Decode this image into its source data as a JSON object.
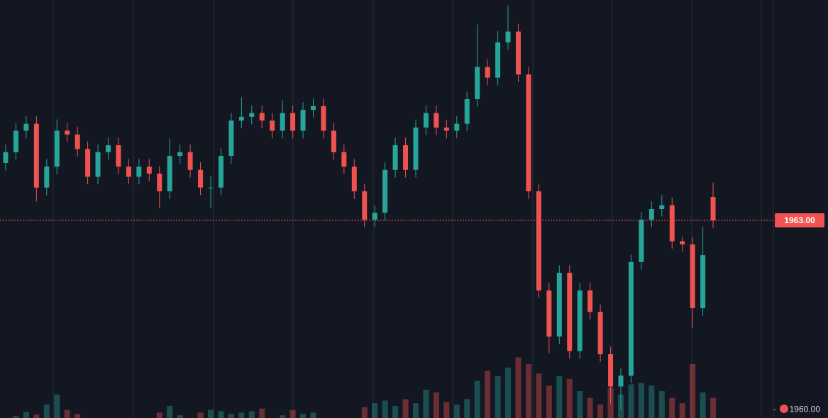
{
  "chart_data": {
    "type": "candlestick",
    "open": [
      1963.91,
      1964.08,
      1964.42,
      1964.53,
      1963.52,
      1963.85,
      1964.42,
      1964.36,
      1964.13,
      1963.69,
      1964.08,
      1964.19,
      1963.85,
      1963.69,
      1963.85,
      1963.74,
      1963.46,
      1964.02,
      1964.08,
      1963.8,
      1963.52,
      1963.52,
      1964.02,
      1964.58,
      1964.64,
      1964.7,
      1964.58,
      1964.42,
      1964.7,
      1964.42,
      1964.75,
      1964.81,
      1964.42,
      1964.08,
      1963.85,
      1963.46,
      1963.01,
      1963.12,
      1963.8,
      1964.19,
      1963.8,
      1964.47,
      1964.7,
      1964.47,
      1964.42,
      1964.53,
      1964.92,
      1965.43,
      1965.26,
      1965.82,
      1965.99,
      1965.31,
      1963.46,
      1961.89,
      1961.16,
      1962.17,
      1960.93,
      1961.89,
      1961.55,
      1960.88,
      1960.37,
      1960.54,
      1962.34,
      1963.01,
      1963.18,
      1963.24,
      1962.67,
      1962.62,
      1961.61,
      1963.37
    ],
    "high": [
      1964.2,
      1964.54,
      1964.65,
      1964.65,
      1963.97,
      1964.6,
      1964.54,
      1964.48,
      1964.25,
      1964.2,
      1964.31,
      1964.31,
      1963.97,
      1963.97,
      1963.97,
      1963.86,
      1964.3,
      1964.2,
      1964.2,
      1963.92,
      1963.7,
      1964.14,
      1964.7,
      1964.95,
      1964.82,
      1964.82,
      1964.7,
      1964.9,
      1964.82,
      1964.87,
      1964.93,
      1964.93,
      1964.54,
      1964.2,
      1963.97,
      1963.58,
      1963.24,
      1963.92,
      1964.31,
      1964.31,
      1964.59,
      1964.82,
      1964.82,
      1964.59,
      1964.65,
      1965.04,
      1966.1,
      1965.55,
      1966.0,
      1966.4,
      1966.11,
      1965.43,
      1963.58,
      1962.01,
      1962.29,
      1962.29,
      1962.01,
      1962.01,
      1961.67,
      1961.0,
      1960.66,
      1962.46,
      1963.13,
      1963.3,
      1963.4,
      1963.36,
      1962.74,
      1962.74,
      1962.9,
      1963.6
    ],
    "low": [
      1963.79,
      1963.96,
      1964.3,
      1963.3,
      1963.4,
      1963.73,
      1964.24,
      1964.01,
      1963.57,
      1963.57,
      1963.96,
      1963.73,
      1963.57,
      1963.57,
      1963.62,
      1963.2,
      1963.34,
      1963.9,
      1963.68,
      1963.4,
      1963.2,
      1963.4,
      1963.9,
      1964.46,
      1964.52,
      1964.46,
      1964.3,
      1964.3,
      1964.3,
      1964.3,
      1964.63,
      1964.3,
      1963.96,
      1963.73,
      1963.34,
      1962.89,
      1962.89,
      1963.0,
      1963.68,
      1963.68,
      1963.68,
      1964.35,
      1964.35,
      1964.3,
      1964.3,
      1964.41,
      1964.8,
      1965.14,
      1965.14,
      1965.7,
      1965.19,
      1963.34,
      1961.77,
      1960.9,
      1961.04,
      1960.81,
      1960.81,
      1961.43,
      1960.76,
      1960.1,
      1960.0,
      1960.42,
      1962.22,
      1962.89,
      1963.06,
      1962.55,
      1962.5,
      1961.3,
      1961.49,
      1962.88
    ],
    "close": [
      1964.08,
      1964.42,
      1964.53,
      1963.52,
      1963.85,
      1964.42,
      1964.36,
      1964.13,
      1963.69,
      1964.08,
      1964.19,
      1963.85,
      1963.69,
      1963.85,
      1963.74,
      1963.46,
      1964.02,
      1964.08,
      1963.8,
      1963.52,
      1963.52,
      1964.02,
      1964.58,
      1964.64,
      1964.7,
      1964.58,
      1964.42,
      1964.7,
      1964.42,
      1964.75,
      1964.81,
      1964.42,
      1964.08,
      1963.85,
      1963.46,
      1963.01,
      1963.12,
      1963.8,
      1964.19,
      1963.8,
      1964.47,
      1964.7,
      1964.47,
      1964.42,
      1964.53,
      1964.92,
      1965.43,
      1965.26,
      1965.82,
      1965.99,
      1965.31,
      1963.46,
      1961.89,
      1961.16,
      1962.17,
      1960.93,
      1961.89,
      1961.55,
      1960.88,
      1960.37,
      1960.54,
      1962.34,
      1963.01,
      1963.18,
      1963.24,
      1962.67,
      1962.62,
      1961.61,
      1962.45,
      1963.0
    ],
    "volume": [
      0,
      3,
      9,
      5,
      20,
      35,
      12,
      6,
      0,
      0,
      0,
      0,
      0,
      0,
      0,
      8,
      18,
      4,
      0,
      8,
      12,
      10,
      6,
      8,
      10,
      14,
      0,
      4,
      12,
      6,
      8,
      0,
      0,
      0,
      0,
      16,
      22,
      26,
      18,
      28,
      22,
      42,
      38,
      24,
      20,
      28,
      55,
      70,
      62,
      75,
      90,
      80,
      66,
      48,
      62,
      58,
      40,
      30,
      20,
      45,
      35,
      50,
      52,
      48,
      40,
      30,
      22,
      80,
      38,
      30
    ],
    "vlim": [
      0,
      100
    ],
    "ylim": [
      1959.87,
      1966.49
    ],
    "yticks": [
      {
        "value": 1960,
        "label": "1960.00"
      }
    ],
    "last_price": {
      "value": 1963,
      "label": "1963.00"
    },
    "up_color": "#26a69a",
    "down_color": "#ef5350"
  }
}
